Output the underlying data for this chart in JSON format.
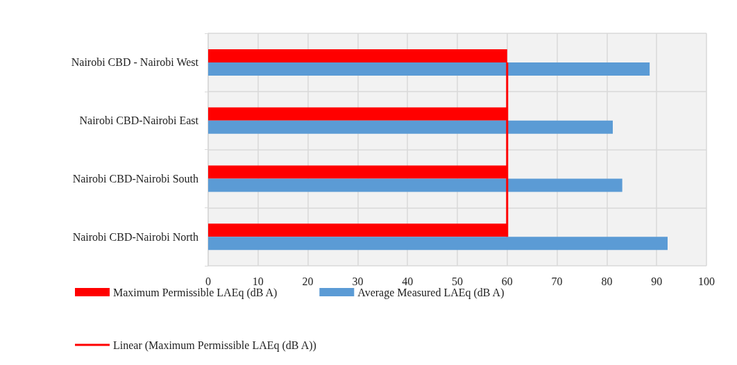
{
  "chart_data": {
    "type": "bar",
    "orientation": "horizontal",
    "categories": [
      "Nairobi CBD - Nairobi West",
      "Nairobi CBD-Nairobi East",
      "Nairobi CBD-Nairobi South",
      "Nairobi CBD-Nairobi North"
    ],
    "series": [
      {
        "name": "Maximum Permissible LAEq (dB A)",
        "color": "#ff0000",
        "values": [
          60,
          60,
          60,
          60
        ]
      },
      {
        "name": "Average Measured LAEq (dB A)",
        "color": "#5b9bd5",
        "values": [
          88.6,
          81.2,
          83.1,
          92.2
        ]
      },
      {
        "name": "Linear (Maximum Permissible LAEq (dB A))",
        "type": "line",
        "color": "#ff0000",
        "values": [
          60,
          60,
          60,
          60
        ]
      }
    ],
    "xlim": [
      0,
      100
    ],
    "xticks": [
      0,
      10,
      20,
      30,
      40,
      50,
      60,
      70,
      80,
      90,
      100
    ],
    "grid": true,
    "legend": "bottom",
    "marker": "none"
  }
}
